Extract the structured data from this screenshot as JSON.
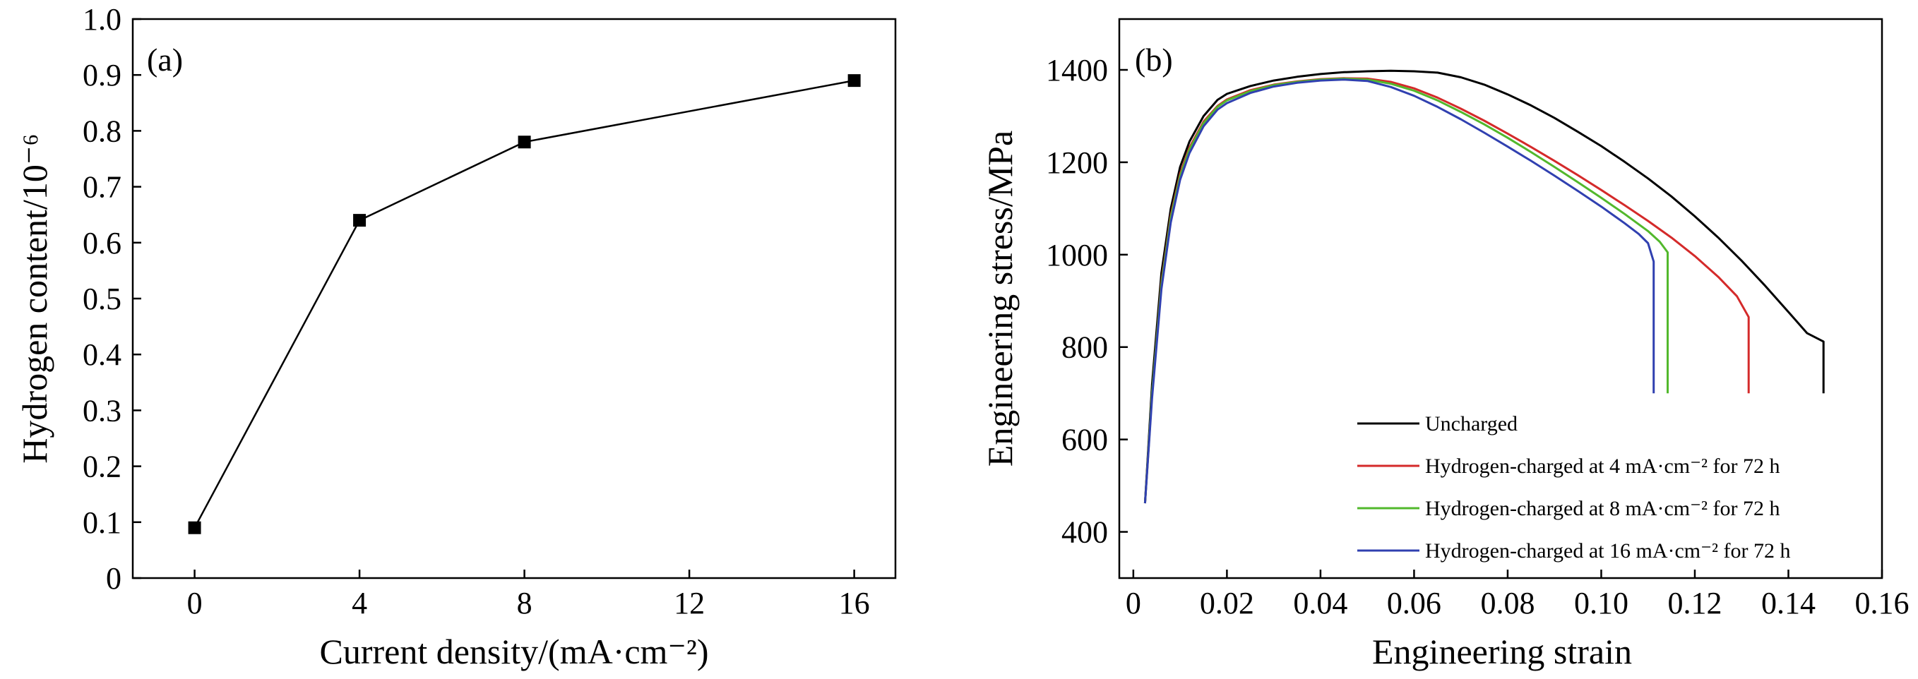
{
  "chart_data": [
    {
      "type": "line",
      "panel_label": "(a)",
      "xlabel": "Current density/(mA·cm⁻²)",
      "ylabel": "Hydrogen content/10⁻⁶",
      "x": [
        0,
        4,
        8,
        16
      ],
      "series": [
        {
          "values": [
            0.09,
            0.64,
            0.78,
            0.89
          ],
          "color": "#000000",
          "marker": "square"
        }
      ],
      "xlim": [
        -1.5,
        17
      ],
      "ylim": [
        0,
        1.0
      ],
      "xticks": [
        0,
        4,
        8,
        12,
        16
      ],
      "xtick_labels": [
        "0",
        "4",
        "8",
        "12",
        "16"
      ],
      "yticks": [
        0,
        0.1,
        0.2,
        0.3,
        0.4,
        0.5,
        0.6,
        0.7,
        0.8,
        0.9,
        1.0
      ],
      "ytick_labels": [
        "0",
        "0.1",
        "0.2",
        "0.3",
        "0.4",
        "0.5",
        "0.6",
        "0.7",
        "0.8",
        "0.9",
        "1.0"
      ],
      "grid": false
    },
    {
      "type": "line",
      "panel_label": "(b)",
      "xlabel": "Engineering strain",
      "ylabel": "Engineering stress/MPa",
      "xlim": [
        -0.003,
        0.16
      ],
      "ylim": [
        300,
        1510
      ],
      "xticks": [
        0,
        0.02,
        0.04,
        0.06,
        0.08,
        0.1,
        0.12,
        0.14,
        0.16
      ],
      "xtick_labels": [
        "0",
        "0.02",
        "0.04",
        "0.06",
        "0.08",
        "0.10",
        "0.12",
        "0.14",
        "0.16"
      ],
      "yticks": [
        400,
        600,
        800,
        1000,
        1200,
        1400
      ],
      "ytick_labels": [
        "400",
        "600",
        "800",
        "1000",
        "1200",
        "1400"
      ],
      "legend_position": "bottom-right",
      "grid": false,
      "series": [
        {
          "name": "Uncharged",
          "color": "#000000",
          "points": [
            [
              0.0025,
              462
            ],
            [
              0.004,
              720
            ],
            [
              0.006,
              960
            ],
            [
              0.008,
              1100
            ],
            [
              0.01,
              1190
            ],
            [
              0.012,
              1245
            ],
            [
              0.015,
              1300
            ],
            [
              0.018,
              1335
            ],
            [
              0.02,
              1348
            ],
            [
              0.025,
              1365
            ],
            [
              0.03,
              1377
            ],
            [
              0.035,
              1385
            ],
            [
              0.04,
              1391
            ],
            [
              0.045,
              1395
            ],
            [
              0.05,
              1397
            ],
            [
              0.055,
              1398
            ],
            [
              0.06,
              1397
            ],
            [
              0.065,
              1394
            ],
            [
              0.07,
              1384
            ],
            [
              0.075,
              1368
            ],
            [
              0.08,
              1347
            ],
            [
              0.085,
              1323
            ],
            [
              0.09,
              1296
            ],
            [
              0.095,
              1266
            ],
            [
              0.1,
              1235
            ],
            [
              0.105,
              1201
            ],
            [
              0.11,
              1165
            ],
            [
              0.115,
              1126
            ],
            [
              0.12,
              1083
            ],
            [
              0.125,
              1037
            ],
            [
              0.13,
              987
            ],
            [
              0.135,
              933
            ],
            [
              0.14,
              876
            ],
            [
              0.144,
              830
            ],
            [
              0.1475,
              812
            ],
            [
              0.1475,
              700
            ]
          ]
        },
        {
          "name": "Hydrogen-charged at 4 mA·cm⁻² for 72 h",
          "color": "#d42a2a",
          "points": [
            [
              0.0025,
              462
            ],
            [
              0.004,
              700
            ],
            [
              0.006,
              940
            ],
            [
              0.008,
              1085
            ],
            [
              0.01,
              1175
            ],
            [
              0.012,
              1232
            ],
            [
              0.015,
              1288
            ],
            [
              0.018,
              1322
            ],
            [
              0.02,
              1336
            ],
            [
              0.025,
              1356
            ],
            [
              0.03,
              1368
            ],
            [
              0.035,
              1375
            ],
            [
              0.04,
              1380
            ],
            [
              0.045,
              1382
            ],
            [
              0.05,
              1381
            ],
            [
              0.055,
              1374
            ],
            [
              0.06,
              1360
            ],
            [
              0.065,
              1340
            ],
            [
              0.07,
              1316
            ],
            [
              0.075,
              1290
            ],
            [
              0.08,
              1262
            ],
            [
              0.085,
              1233
            ],
            [
              0.09,
              1203
            ],
            [
              0.095,
              1172
            ],
            [
              0.1,
              1140
            ],
            [
              0.105,
              1107
            ],
            [
              0.11,
              1073
            ],
            [
              0.115,
              1037
            ],
            [
              0.12,
              997
            ],
            [
              0.125,
              952
            ],
            [
              0.129,
              910
            ],
            [
              0.1315,
              865
            ],
            [
              0.1315,
              700
            ]
          ]
        },
        {
          "name": "Hydrogen-charged at 8 mA·cm⁻² for 72 h",
          "color": "#52b82c",
          "points": [
            [
              0.0025,
              462
            ],
            [
              0.004,
              700
            ],
            [
              0.006,
              935
            ],
            [
              0.008,
              1080
            ],
            [
              0.01,
              1170
            ],
            [
              0.012,
              1228
            ],
            [
              0.015,
              1285
            ],
            [
              0.018,
              1320
            ],
            [
              0.02,
              1334
            ],
            [
              0.025,
              1354
            ],
            [
              0.03,
              1367
            ],
            [
              0.035,
              1374
            ],
            [
              0.04,
              1379
            ],
            [
              0.045,
              1381
            ],
            [
              0.05,
              1379
            ],
            [
              0.055,
              1370
            ],
            [
              0.06,
              1355
            ],
            [
              0.065,
              1334
            ],
            [
              0.07,
              1309
            ],
            [
              0.075,
              1282
            ],
            [
              0.08,
              1253
            ],
            [
              0.085,
              1222
            ],
            [
              0.09,
              1190
            ],
            [
              0.095,
              1157
            ],
            [
              0.1,
              1123
            ],
            [
              0.105,
              1088
            ],
            [
              0.11,
              1051
            ],
            [
              0.1125,
              1028
            ],
            [
              0.1142,
              1005
            ],
            [
              0.1142,
              700
            ]
          ]
        },
        {
          "name": "Hydrogen-charged at 16 mA·cm⁻² for 72 h",
          "color": "#3040b0",
          "points": [
            [
              0.0025,
              462
            ],
            [
              0.004,
              690
            ],
            [
              0.006,
              925
            ],
            [
              0.008,
              1070
            ],
            [
              0.01,
              1162
            ],
            [
              0.012,
              1220
            ],
            [
              0.015,
              1278
            ],
            [
              0.018,
              1314
            ],
            [
              0.02,
              1328
            ],
            [
              0.025,
              1350
            ],
            [
              0.03,
              1364
            ],
            [
              0.035,
              1372
            ],
            [
              0.04,
              1377
            ],
            [
              0.045,
              1379
            ],
            [
              0.05,
              1376
            ],
            [
              0.055,
              1363
            ],
            [
              0.06,
              1344
            ],
            [
              0.065,
              1320
            ],
            [
              0.07,
              1293
            ],
            [
              0.075,
              1264
            ],
            [
              0.08,
              1234
            ],
            [
              0.085,
              1203
            ],
            [
              0.09,
              1171
            ],
            [
              0.095,
              1138
            ],
            [
              0.1,
              1104
            ],
            [
              0.105,
              1068
            ],
            [
              0.108,
              1045
            ],
            [
              0.11,
              1025
            ],
            [
              0.1112,
              985
            ],
            [
              0.1112,
              700
            ]
          ]
        }
      ]
    }
  ]
}
